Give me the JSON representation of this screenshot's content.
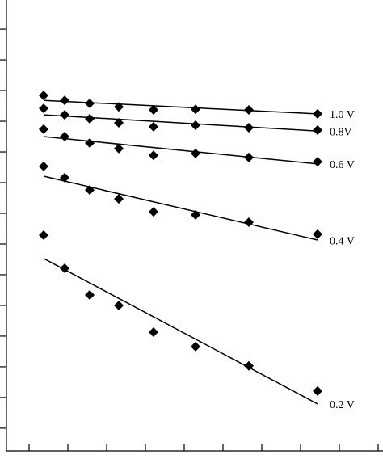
{
  "chart_data": {
    "type": "scatter",
    "color": "#000000",
    "x": [
      0.375,
      0.917,
      1.563,
      2.313,
      3.208,
      4.292,
      5.667,
      7.438
    ],
    "xlim": [
      -0.75,
      9.125
    ],
    "xticks": [
      0,
      1,
      2,
      3,
      4,
      5,
      6,
      7,
      8,
      9
    ],
    "ylim": [
      -0.74,
      13.95
    ],
    "yticks": [
      0,
      1,
      2,
      3,
      4,
      5,
      6,
      7,
      8,
      9,
      10,
      11,
      12,
      13
    ],
    "fit_x": [
      0.375,
      7.438
    ],
    "series": [
      {
        "name": "1.0 V",
        "values": [
          10.84,
          10.68,
          10.58,
          10.47,
          10.37,
          10.39,
          10.37,
          10.24
        ],
        "fit": [
          10.68,
          10.24
        ]
      },
      {
        "name": "0.8V",
        "values": [
          10.42,
          10.21,
          10.08,
          9.95,
          9.82,
          9.87,
          9.79,
          9.71
        ],
        "fit": [
          10.21,
          9.68
        ]
      },
      {
        "name": "0.6 V",
        "values": [
          9.74,
          9.5,
          9.29,
          9.11,
          8.89,
          8.95,
          8.82,
          8.68
        ],
        "fit": [
          9.5,
          8.61
        ]
      },
      {
        "name": "0.4 V",
        "values": [
          8.53,
          8.16,
          7.76,
          7.47,
          7.05,
          6.95,
          6.71,
          6.32
        ],
        "fit": [
          8.21,
          6.13
        ]
      },
      {
        "name": "0.2 V",
        "values": [
          6.29,
          5.21,
          4.34,
          4.0,
          3.13,
          2.66,
          2.03,
          1.21
        ],
        "fit": [
          5.53,
          0.79
        ]
      }
    ]
  }
}
